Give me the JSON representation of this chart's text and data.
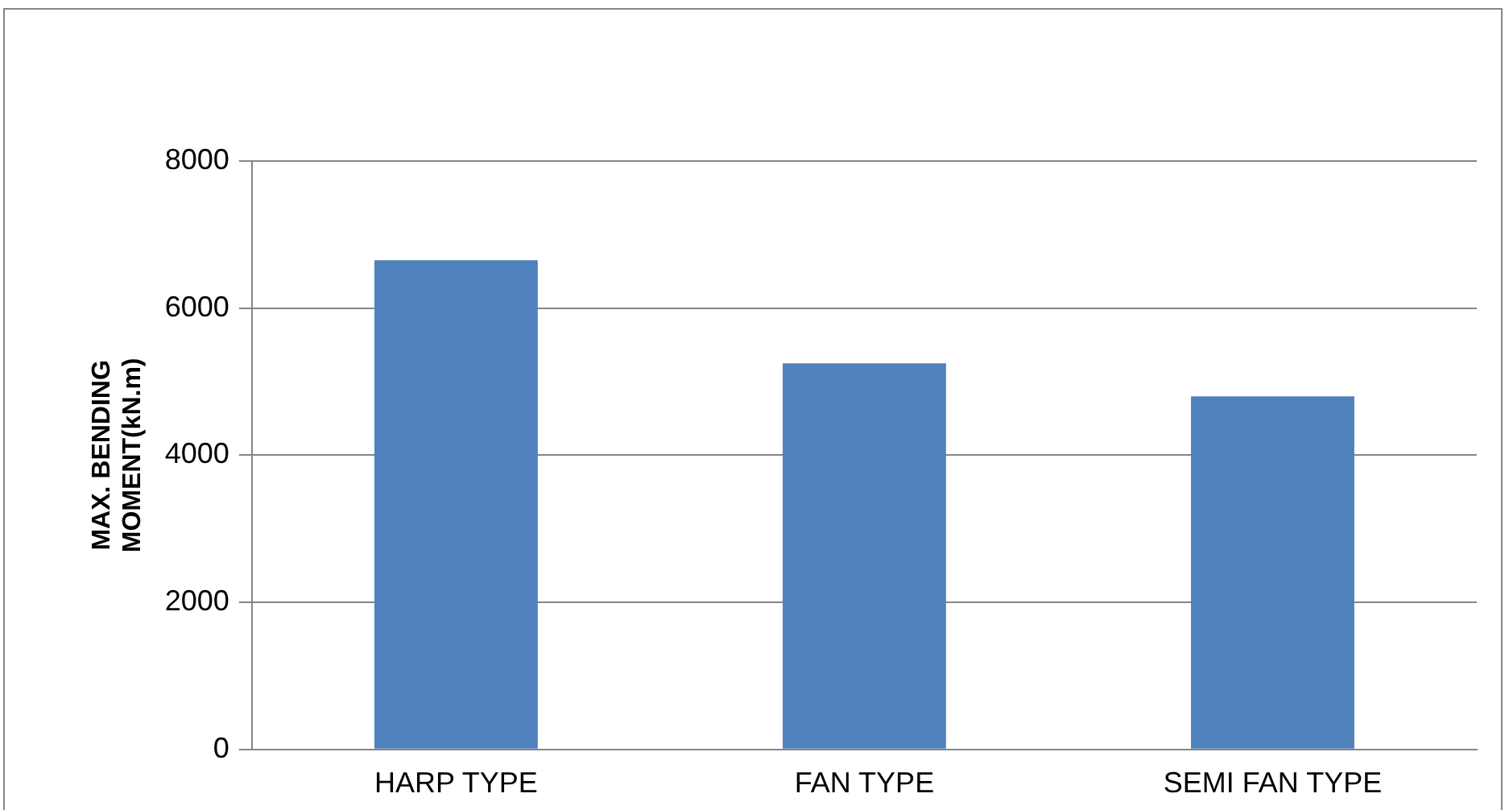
{
  "chart_data": {
    "type": "bar",
    "ylabel": "MAX. BENDING MOMENT(kN.m)",
    "categories": [
      "HARP TYPE",
      "FAN TYPE",
      "SEMI FAN TYPE"
    ],
    "values": [
      6650,
      5250,
      4800
    ],
    "color": "#4f81bd",
    "ylim": [
      0,
      8000
    ],
    "yticks": [
      0,
      2000,
      4000,
      6000,
      8000
    ],
    "grid": "y",
    "legend": false
  }
}
